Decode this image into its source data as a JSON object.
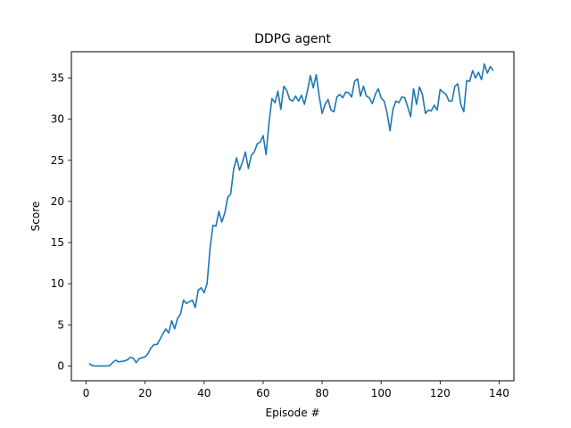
{
  "chart_data": {
    "type": "line",
    "title": "DDPG agent",
    "xlabel": "Episode #",
    "ylabel": "Score",
    "xlim": [
      -5,
      145
    ],
    "ylim": [
      -1.8,
      38.2
    ],
    "xticks": [
      0,
      20,
      40,
      60,
      80,
      100,
      120,
      140
    ],
    "yticks": [
      0,
      5,
      10,
      15,
      20,
      25,
      30,
      35
    ],
    "grid": false,
    "series": [
      {
        "color": "#1f77b4",
        "x": [
          1,
          2,
          3,
          4,
          5,
          6,
          7,
          8,
          9,
          10,
          11,
          12,
          13,
          14,
          15,
          16,
          17,
          18,
          19,
          20,
          21,
          22,
          23,
          24,
          25,
          26,
          27,
          28,
          29,
          30,
          31,
          32,
          33,
          34,
          35,
          36,
          37,
          38,
          39,
          40,
          41,
          42,
          43,
          44,
          45,
          46,
          47,
          48,
          49,
          50,
          51,
          52,
          53,
          54,
          55,
          56,
          57,
          58,
          59,
          60,
          61,
          62,
          63,
          64,
          65,
          66,
          67,
          68,
          69,
          70,
          71,
          72,
          73,
          74,
          75,
          76,
          77,
          78,
          79,
          80,
          81,
          82,
          83,
          84,
          85,
          86,
          87,
          88,
          89,
          90,
          91,
          92,
          93,
          94,
          95,
          96,
          97,
          98,
          99,
          100,
          101,
          102,
          103,
          104,
          105,
          106,
          107,
          108,
          109,
          110,
          111,
          112,
          113,
          114,
          115,
          116,
          117,
          118,
          119,
          120,
          121,
          122,
          123,
          124,
          125,
          126,
          127,
          128,
          129,
          130,
          131,
          132,
          133,
          134,
          135,
          136,
          137,
          138
        ],
        "y": [
          0.3,
          0.05,
          0.0,
          0.0,
          0.0,
          0.0,
          0.0,
          0.05,
          0.4,
          0.7,
          0.5,
          0.55,
          0.6,
          0.75,
          1.05,
          0.95,
          0.4,
          0.9,
          1.0,
          1.1,
          1.5,
          2.2,
          2.6,
          2.6,
          3.2,
          3.9,
          4.5,
          4.0,
          5.5,
          4.5,
          5.8,
          6.3,
          8.0,
          7.6,
          7.8,
          8.0,
          7.1,
          9.2,
          9.5,
          8.9,
          10.0,
          14.3,
          17.1,
          17.0,
          18.8,
          17.5,
          18.6,
          20.5,
          20.9,
          23.9,
          25.3,
          23.8,
          24.8,
          26.0,
          24.0,
          25.6,
          26.0,
          27.0,
          27.2,
          28.0,
          25.7,
          29.6,
          32.5,
          32.0,
          33.4,
          31.2,
          34.0,
          33.5,
          32.4,
          32.2,
          32.8,
          32.2,
          32.9,
          31.8,
          33.4,
          35.3,
          33.8,
          35.4,
          32.8,
          30.7,
          31.8,
          32.4,
          31.1,
          30.9,
          32.7,
          33.0,
          32.6,
          33.3,
          33.2,
          32.7,
          34.6,
          34.9,
          32.8,
          34.0,
          32.8,
          32.6,
          31.9,
          33.0,
          33.7,
          32.6,
          32.2,
          30.8,
          28.6,
          31.2,
          32.2,
          32.0,
          32.7,
          32.6,
          31.5,
          30.3,
          33.7,
          31.8,
          33.9,
          33.0,
          30.7,
          31.1,
          31.0,
          31.7,
          31.1,
          33.6,
          33.3,
          33.0,
          32.2,
          32.2,
          34.0,
          34.3,
          31.8,
          30.9,
          34.7,
          34.6,
          35.9,
          35.0,
          35.7,
          34.8,
          36.7,
          35.6,
          36.4,
          35.9
        ]
      }
    ]
  }
}
